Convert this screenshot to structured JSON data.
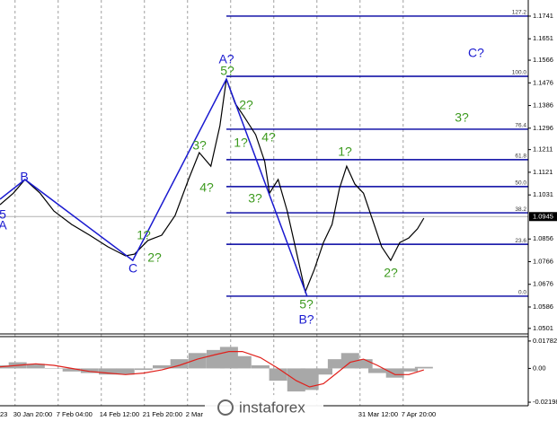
{
  "watermark": "instaforex",
  "chart_data": [
    {
      "type": "line",
      "x": [
        0.65,
        0.96,
        1.23,
        1.58,
        1.9,
        2.31,
        2.73,
        3.15,
        3.56,
        3.77,
        4.08,
        4.4,
        4.71,
        5.02,
        5.27,
        5.54,
        5.75,
        5.9,
        6.1,
        6.31,
        6.58,
        6.79,
        6.9,
        7.1,
        7.31,
        7.52,
        7.73,
        7.94,
        8.15,
        8.35,
        8.52,
        8.69,
        8.88,
        9.08,
        9.29,
        9.5,
        9.71,
        9.92,
        10.13,
        10.33,
        10.48
      ],
      "series": [
        {
          "color": "#000000",
          "values": [
            1.0992,
            1.1038,
            1.1092,
            1.1038,
            1.0967,
            1.0914,
            1.0871,
            1.0825,
            1.0789,
            1.0796,
            1.085,
            1.0871,
            1.0949,
            1.1092,
            1.1199,
            1.1145,
            1.1306,
            1.1491,
            1.1395,
            1.1342,
            1.127,
            1.1163,
            1.1038,
            1.1092,
            1.0967,
            1.0807,
            1.0646,
            1.0735,
            1.0842,
            1.0914,
            1.1056,
            1.1145,
            1.1074,
            1.1038,
            1.0932,
            1.0825,
            1.0771,
            1.0842,
            1.086,
            1.0896,
            1.0939
          ]
        }
      ],
      "waves": {
        "color": "#1a1ad0",
        "x": [
          0.65,
          1.23,
          3.73,
          5.9,
          7.77
        ],
        "values": [
          1.1014,
          1.1092,
          1.0771,
          1.1491,
          1.0629
        ]
      },
      "fib_levels": {
        "color": "#0000a0",
        "labels": [
          "127.2",
          "100.0",
          "76.4",
          "61.8",
          "50.0",
          "38.2",
          "23.6",
          "0.0"
        ],
        "values": [
          1.1741,
          1.1502,
          1.1292,
          1.1171,
          1.1064,
          1.096,
          1.0835,
          1.0629
        ]
      },
      "current_price": 1.0945,
      "annotations": [
        {
          "text": "5",
          "color": "#1a1ad0"
        },
        {
          "text": "A",
          "color": "#1a1ad0"
        },
        {
          "text": "B",
          "color": "#1a1ad0"
        },
        {
          "text": "1?",
          "color": "#3c9a1e"
        },
        {
          "text": "2?",
          "color": "#3c9a1e"
        },
        {
          "text": "C",
          "color": "#1a1ad0"
        },
        {
          "text": "3?",
          "color": "#3c9a1e"
        },
        {
          "text": "4?",
          "color": "#3c9a1e"
        },
        {
          "text": "A?",
          "color": "#1a1ad0"
        },
        {
          "text": "5?",
          "color": "#3c9a1e"
        },
        {
          "text": "2?",
          "color": "#3c9a1e"
        },
        {
          "text": "1?",
          "color": "#3c9a1e"
        },
        {
          "text": "4?",
          "color": "#3c9a1e"
        },
        {
          "text": "3?",
          "color": "#3c9a1e"
        },
        {
          "text": "5?",
          "color": "#3c9a1e"
        },
        {
          "text": "B?",
          "color": "#1a1ad0"
        },
        {
          "text": "1?",
          "color": "#3c9a1e"
        },
        {
          "text": "2?",
          "color": "#3c9a1e"
        },
        {
          "text": "3?",
          "color": "#3c9a1e"
        },
        {
          "text": "C?",
          "color": "#1a1ad0"
        }
      ],
      "xlim": [
        0.65,
        12.9
      ],
      "ylim": [
        1.0479,
        1.1805
      ],
      "xticks": [
        {
          "value": 0,
          "label": "23"
        },
        {
          "value": 1,
          "label": "30 Jan 20:00"
        },
        {
          "value": 2,
          "label": "7 Feb 04:00"
        },
        {
          "value": 3,
          "label": "14 Feb 12:00"
        },
        {
          "value": 4,
          "label": "21 Feb 20:00"
        },
        {
          "value": 5,
          "label": "2 Mar"
        },
        {
          "value": 6,
          "label": null
        },
        {
          "value": 7,
          "label": null
        },
        {
          "value": 8,
          "label": null
        },
        {
          "value": 9,
          "label": "31 Mar 12:00"
        },
        {
          "value": 10,
          "label": "7 Apr 20:00"
        }
      ],
      "yticks": [
        1.1741,
        1.1651,
        1.1566,
        1.1476,
        1.1386,
        1.1296,
        1.1211,
        1.1121,
        1.1031,
        1.0856,
        1.0766,
        1.0676,
        1.0586,
        1.0501
      ],
      "grid": true
    },
    {
      "type": "bar",
      "x": [
        0.65,
        1.06,
        1.48,
        1.9,
        2.31,
        2.73,
        3.15,
        3.56,
        3.98,
        4.4,
        4.81,
        5.23,
        5.65,
        5.96,
        6.27,
        6.69,
        7.1,
        7.52,
        7.83,
        8.15,
        8.46,
        8.77,
        9.08,
        9.4,
        9.81,
        10.13,
        10.48
      ],
      "values": [
        0.002,
        0.004,
        0.003,
        0.0,
        -0.002,
        -0.003,
        -0.004,
        -0.004,
        -0.001,
        0.002,
        0.006,
        0.01,
        0.012,
        0.014,
        0.008,
        0.002,
        -0.008,
        -0.015,
        -0.014,
        -0.004,
        0.006,
        0.01,
        0.006,
        -0.003,
        -0.006,
        -0.002,
        0.001
      ],
      "color": "#a8a8a8",
      "signal": {
        "color": "#e0201b",
        "values": [
          0.001,
          0.002,
          0.003,
          0.002,
          0.0,
          -0.002,
          -0.003,
          -0.004,
          -0.003,
          -0.001,
          0.002,
          0.006,
          0.009,
          0.011,
          0.011,
          0.007,
          0.0,
          -0.008,
          -0.012,
          -0.01,
          -0.003,
          0.004,
          0.006,
          0.002,
          -0.004,
          -0.004,
          -0.001
        ]
      },
      "ylim": [
        -0.0237,
        0.0201
      ],
      "yticks": [
        0.01782,
        {
          "value": 0,
          "label": "0.00"
        },
        -0.02198
      ]
    }
  ]
}
